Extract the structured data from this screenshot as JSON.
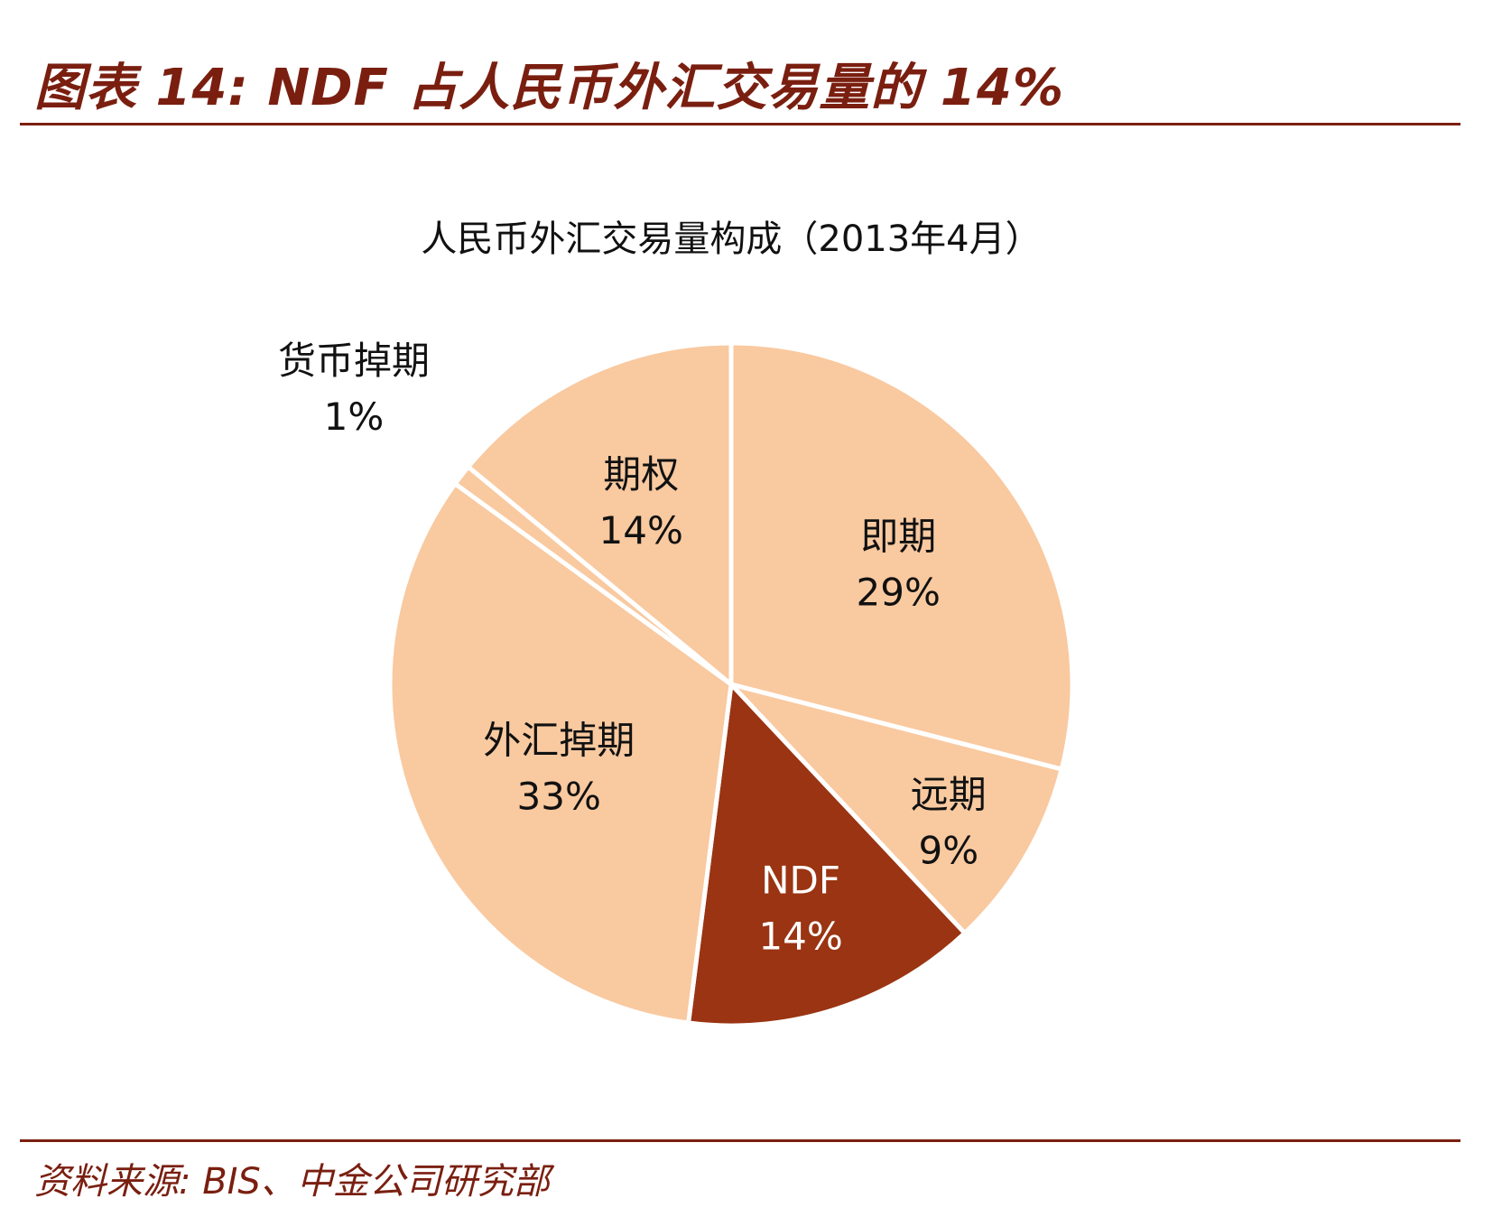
{
  "figure": {
    "title": "图表 14: NDF 占人民币外汇交易量的 14%",
    "source": "资料来源: BIS、中金公司研究部"
  },
  "colors": {
    "accent": "#7a1f10",
    "slice_light": "#f9c9a0",
    "slice_dark": "#9a3412",
    "separator": "#ffffff"
  },
  "chart_data": {
    "type": "pie",
    "title": "人民币外汇交易量构成（2013年4月）",
    "slices": [
      {
        "name": "即期",
        "value": 29,
        "label": "29%",
        "highlight": false
      },
      {
        "name": "远期",
        "value": 9,
        "label": "9%",
        "highlight": false
      },
      {
        "name": "NDF",
        "value": 14,
        "label": "14%",
        "highlight": true
      },
      {
        "name": "外汇掉期",
        "value": 33,
        "label": "33%",
        "highlight": false
      },
      {
        "name": "货币掉期",
        "value": 1,
        "label": "1%",
        "highlight": false
      },
      {
        "name": "期权",
        "value": 14,
        "label": "14%",
        "highlight": false
      }
    ]
  }
}
